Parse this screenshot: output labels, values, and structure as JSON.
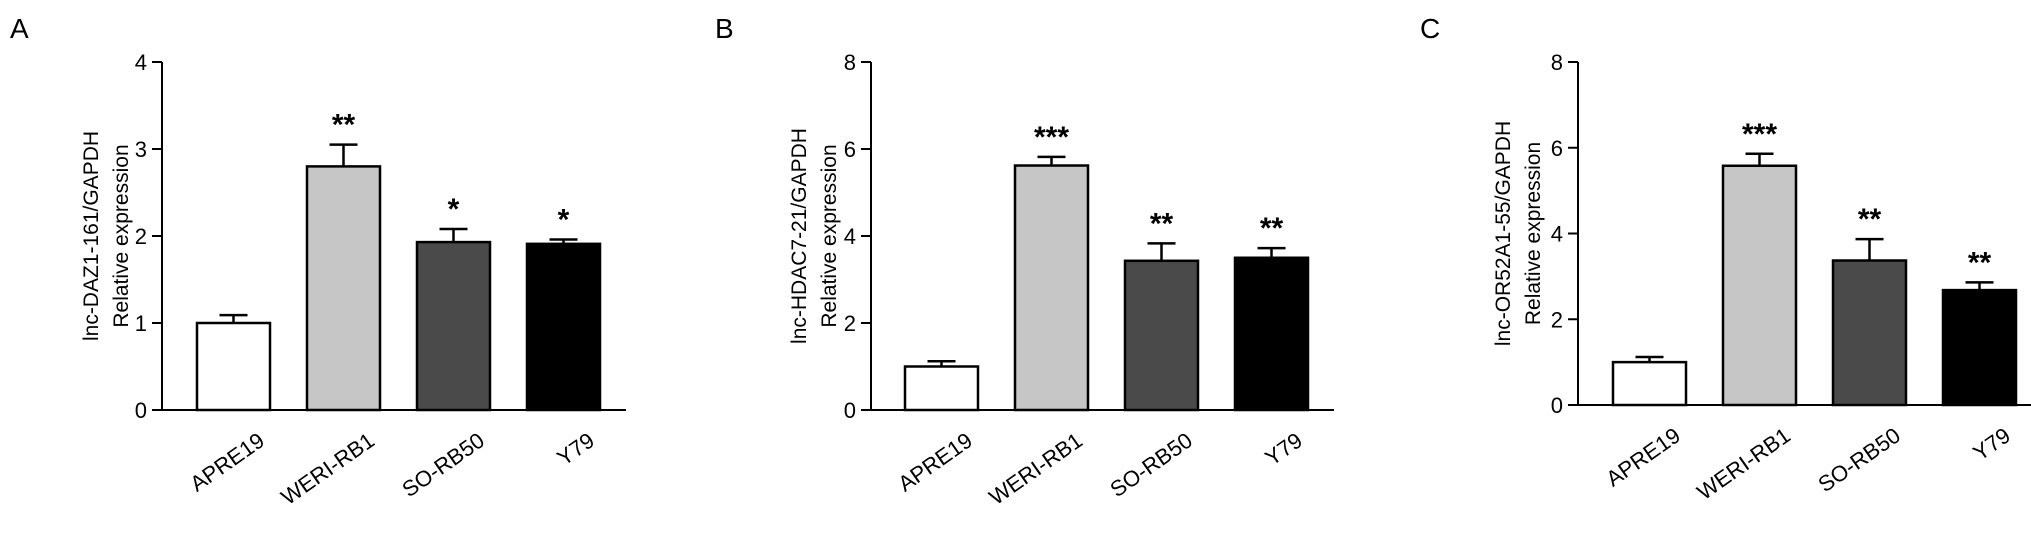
{
  "colors": {
    "APRE19": "#ffffff",
    "WERI-RB1": "#c6c6c6",
    "SO-RB50": "#4a4a4a",
    "Y79": "#000000",
    "axis": "#000000"
  },
  "chart_data": [
    {
      "type": "bar",
      "panel_label": "A",
      "categories": [
        "APRE19",
        "WERI-RB1",
        "SO-RB50",
        "Y79"
      ],
      "values": [
        1.0,
        2.8,
        1.93,
        1.91
      ],
      "errors": [
        0.09,
        0.25,
        0.15,
        0.05
      ],
      "significance": [
        "",
        "**",
        "*",
        "*"
      ],
      "ylabel_line1": "lnc-DAZ1-161/GAPDH",
      "ylabel_line2": "Relative expression",
      "ylim": [
        0,
        4
      ],
      "yticks": [
        "0",
        "1",
        "2",
        "3",
        "4"
      ]
    },
    {
      "type": "bar",
      "panel_label": "B",
      "categories": [
        "APRE19",
        "WERI-RB1",
        "SO-RB50",
        "Y79"
      ],
      "values": [
        1.0,
        5.62,
        3.43,
        3.5
      ],
      "errors": [
        0.12,
        0.2,
        0.4,
        0.22
      ],
      "significance": [
        "",
        "***",
        "**",
        "**"
      ],
      "ylabel_line1": "lnc-HDAC7-21/GAPDH",
      "ylabel_line2": "Relative expression",
      "ylim": [
        0,
        8
      ],
      "yticks": [
        "0",
        "2",
        "4",
        "6",
        "8"
      ]
    },
    {
      "type": "bar",
      "panel_label": "C",
      "categories": [
        "APRE19",
        "WERI-RB1",
        "SO-RB50",
        "Y79"
      ],
      "values": [
        1.0,
        5.58,
        3.37,
        2.68
      ],
      "errors": [
        0.12,
        0.28,
        0.5,
        0.18
      ],
      "significance": [
        "",
        "***",
        "**",
        "**"
      ],
      "ylabel_line1": "lnc-OR52A1-55/GAPDH",
      "ylabel_line2": "Relative expression",
      "ylim": [
        0,
        8
      ],
      "yticks": [
        "0",
        "2",
        "4",
        "6",
        "8"
      ]
    }
  ]
}
